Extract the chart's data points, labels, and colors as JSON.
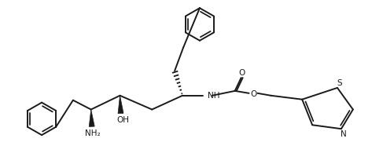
{
  "background": "#ffffff",
  "line_color": "#1a1a1a",
  "line_width": 1.4,
  "figsize": [
    4.87,
    2.09
  ],
  "dpi": 100,
  "xlim": [
    0,
    487
  ],
  "ylim": [
    0,
    209
  ]
}
